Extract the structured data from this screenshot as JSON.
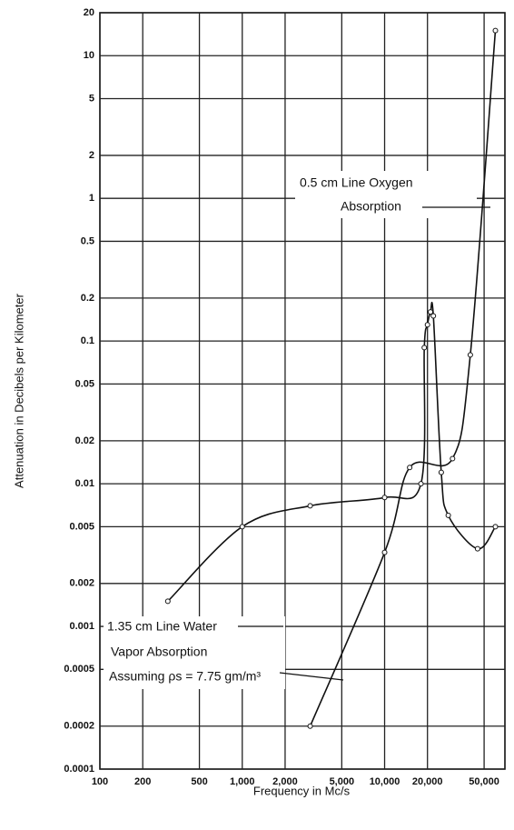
{
  "chart_data": {
    "type": "line",
    "x_label": "Frequency in Mc/s",
    "y_label": "Attenuation in Decibels per Kilometer",
    "log_x": true,
    "log_y": true,
    "grid": true,
    "xlim": [
      100,
      70000
    ],
    "ylim": [
      0.0001,
      20
    ],
    "xticks": [
      100,
      200,
      500,
      {
        "value": 1000,
        "label": "1,000"
      },
      {
        "value": 2000,
        "label": "2,000"
      },
      {
        "value": 5000,
        "label": "5,000"
      },
      {
        "value": 10000,
        "label": "10,000"
      },
      {
        "value": 20000,
        "label": "20,000"
      },
      {
        "value": 50000,
        "label": "50,000"
      }
    ],
    "yticks": [
      20,
      10,
      5,
      2,
      1,
      0.5,
      0.2,
      0.1,
      0.05,
      0.02,
      0.01,
      0.005,
      0.002,
      0.001,
      0.0005,
      0.0002,
      0.0001
    ],
    "series": [
      {
        "color": "#111111",
        "x": [
          300,
          1000,
          3000,
          10000,
          18000,
          19000,
          20000,
          21000,
          22000,
          25000,
          28000,
          45000,
          60000
        ],
        "values": [
          0.0015,
          0.005,
          0.007,
          0.008,
          0.01,
          0.09,
          0.13,
          0.16,
          0.15,
          0.012,
          0.006,
          0.0035,
          0.005
        ]
      },
      {
        "color": "#111111",
        "x": [
          3000,
          10000,
          15000,
          30000,
          40000,
          60000
        ],
        "values": [
          0.0002,
          0.0033,
          0.013,
          0.015,
          0.08,
          15
        ]
      }
    ],
    "annotations": [
      {
        "lines": [
          "0.5 cm Line Oxygen",
          "Absorption"
        ]
      },
      {
        "lines": [
          "1.35 cm Line Water",
          "Vapor Absorption",
          "Assuming ρs = 7.75 gm/m³"
        ]
      }
    ]
  }
}
